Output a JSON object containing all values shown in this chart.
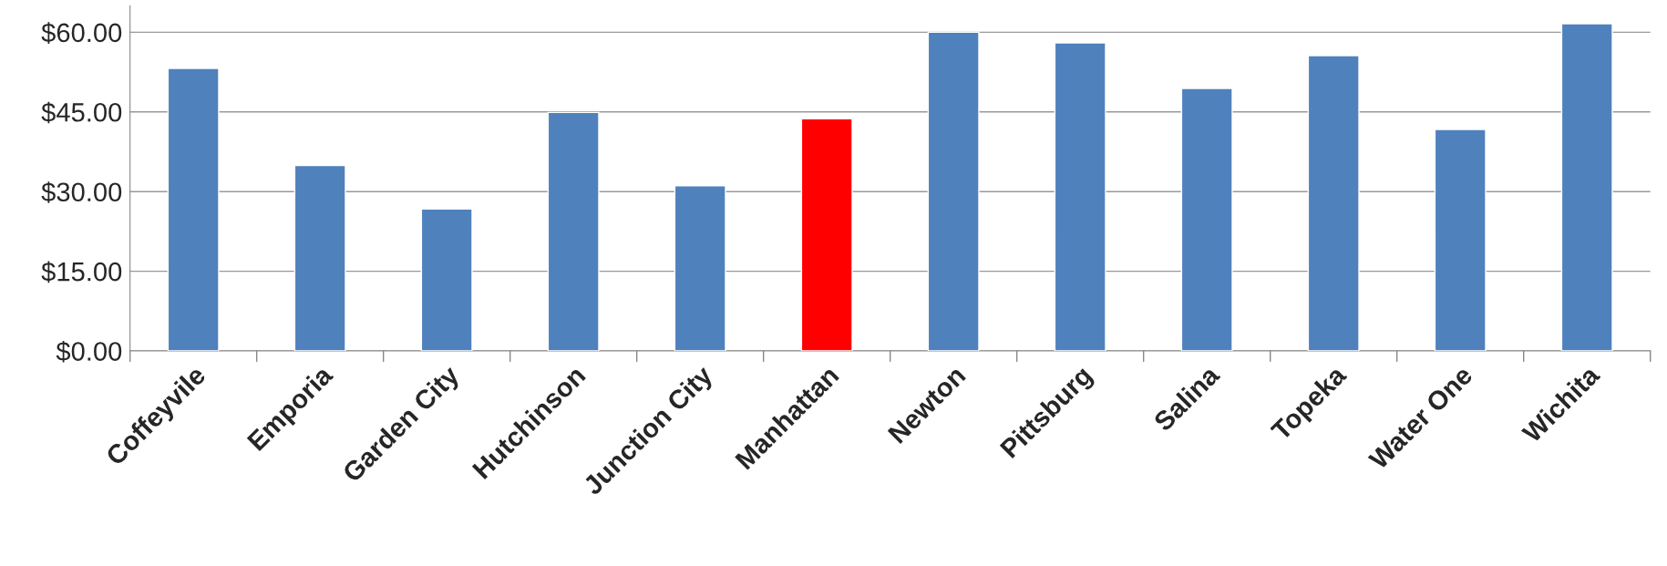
{
  "chart_data": {
    "type": "bar",
    "categories": [
      "Coffeyvile",
      "Emporia",
      "Garden City",
      "Hutchinson",
      "Junction City",
      "Manhattan",
      "Newton",
      "Pittsburg",
      "Salina",
      "Topeka",
      "Water One",
      "Wichita"
    ],
    "values": [
      53.2,
      34.9,
      26.7,
      44.9,
      31.1,
      43.7,
      60.0,
      58.0,
      49.4,
      55.6,
      41.7,
      61.6
    ],
    "colors": [
      "#4f81bd",
      "#4f81bd",
      "#4f81bd",
      "#4f81bd",
      "#4f81bd",
      "#ff0000",
      "#4f81bd",
      "#4f81bd",
      "#4f81bd",
      "#4f81bd",
      "#4f81bd",
      "#4f81bd"
    ],
    "ylim": [
      0,
      65
    ],
    "yticks": [
      {
        "value": 0,
        "label": "$0.00"
      },
      {
        "value": 15,
        "label": "$15.00"
      },
      {
        "value": 30,
        "label": "$30.00"
      },
      {
        "value": 45,
        "label": "$45.00"
      },
      {
        "value": 60,
        "label": "$60.00"
      }
    ],
    "grid": "y"
  }
}
